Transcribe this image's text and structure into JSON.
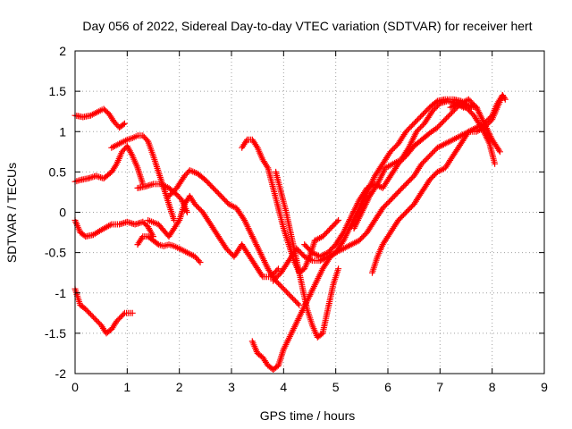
{
  "chart_data": {
    "type": "scatter",
    "title": "Day 056 of 2022, Sidereal Day-to-day VTEC variation (SDTVAR) for receiver hert",
    "xlabel": "GPS time / hours",
    "ylabel": "SDTVAR / TECUs",
    "xlim": [
      0,
      9
    ],
    "ylim": [
      -2,
      2
    ],
    "xticks": [
      "0",
      "1",
      "2",
      "3",
      "4",
      "5",
      "6",
      "7",
      "8",
      "9"
    ],
    "yticks": [
      "2",
      "1.5",
      "1",
      "0.5",
      "0",
      "-0.5",
      "-1",
      "-1.5",
      "-2"
    ],
    "grid": true,
    "marker": "plus",
    "color": "#ff0000",
    "series": [
      {
        "x": [
          0.0,
          0.15,
          0.3,
          0.45,
          0.55,
          0.65,
          0.75,
          0.85,
          0.95
        ],
        "y": [
          1.2,
          1.18,
          1.2,
          1.25,
          1.28,
          1.22,
          1.12,
          1.05,
          1.1
        ]
      },
      {
        "x": [
          0.0,
          0.1,
          0.25,
          0.4,
          0.55,
          0.7,
          0.8,
          0.9,
          1.0,
          1.1,
          1.2,
          1.3
        ],
        "y": [
          0.38,
          0.4,
          0.42,
          0.45,
          0.42,
          0.5,
          0.6,
          0.75,
          0.82,
          0.7,
          0.55,
          0.35
        ]
      },
      {
        "x": [
          0.0,
          0.1,
          0.2,
          0.35,
          0.5,
          0.7,
          0.85,
          1.0,
          1.15,
          1.3,
          1.4,
          1.5
        ],
        "y": [
          -0.1,
          -0.25,
          -0.3,
          -0.28,
          -0.22,
          -0.15,
          -0.15,
          -0.12,
          -0.15,
          -0.12,
          -0.18,
          -0.3
        ]
      },
      {
        "x": [
          0.0,
          0.1,
          0.2,
          0.35,
          0.5,
          0.6,
          0.7,
          0.8,
          0.95,
          1.1
        ],
        "y": [
          -0.95,
          -1.15,
          -1.2,
          -1.3,
          -1.4,
          -1.5,
          -1.45,
          -1.35,
          -1.25,
          -1.25
        ]
      },
      {
        "x": [
          0.7,
          0.85,
          1.0,
          1.1,
          1.2,
          1.3,
          1.4,
          1.5,
          1.6,
          1.7,
          1.8,
          1.9
        ],
        "y": [
          0.8,
          0.85,
          0.9,
          0.92,
          0.95,
          0.95,
          0.88,
          0.7,
          0.5,
          0.3,
          0.1,
          -0.1
        ]
      },
      {
        "x": [
          1.2,
          1.3,
          1.4,
          1.5,
          1.6,
          1.7,
          1.8,
          1.9,
          2.0,
          2.15,
          2.3,
          2.4
        ],
        "y": [
          -0.4,
          -0.3,
          -0.3,
          -0.35,
          -0.4,
          -0.42,
          -0.4,
          -0.42,
          -0.45,
          -0.5,
          -0.55,
          -0.62
        ]
      },
      {
        "x": [
          1.2,
          1.35,
          1.5,
          1.65,
          1.8,
          1.95,
          2.05,
          2.15
        ],
        "y": [
          0.3,
          0.32,
          0.35,
          0.35,
          0.3,
          0.22,
          0.15,
          0.0
        ]
      },
      {
        "x": [
          1.4,
          1.6,
          1.8,
          2.0,
          2.1,
          2.2,
          2.3,
          2.45,
          2.6,
          2.75,
          2.9,
          3.05,
          3.2,
          3.3,
          3.45,
          3.6,
          3.75,
          3.9
        ],
        "y": [
          -0.1,
          -0.15,
          -0.3,
          -0.1,
          0.1,
          0.2,
          0.1,
          0.0,
          -0.15,
          -0.3,
          -0.45,
          -0.55,
          -0.4,
          -0.5,
          -0.65,
          -0.8,
          -0.8,
          -0.7
        ]
      },
      {
        "x": [
          1.8,
          1.95,
          2.1,
          2.2,
          2.35,
          2.5,
          2.65,
          2.8,
          2.95,
          3.1,
          3.25,
          3.4,
          3.55,
          3.7,
          3.85,
          4.0,
          4.15,
          4.3
        ],
        "y": [
          0.2,
          0.3,
          0.45,
          0.52,
          0.48,
          0.4,
          0.3,
          0.2,
          0.1,
          0.05,
          -0.1,
          -0.3,
          -0.5,
          -0.7,
          -0.85,
          -0.95,
          -1.05,
          -1.15
        ]
      },
      {
        "x": [
          3.2,
          3.3,
          3.4,
          3.5,
          3.6,
          3.7,
          3.8,
          3.9,
          4.0,
          4.1,
          4.2,
          4.3,
          4.4,
          4.5,
          4.6
        ],
        "y": [
          0.8,
          0.9,
          0.9,
          0.8,
          0.65,
          0.55,
          0.3,
          0.05,
          -0.2,
          -0.4,
          -0.6,
          -0.75,
          -0.7,
          -0.55,
          -0.35
        ]
      },
      {
        "x": [
          3.85,
          3.95,
          4.05,
          4.15,
          4.25,
          4.35,
          4.45,
          4.55,
          4.65,
          4.75,
          4.85,
          4.95,
          5.05
        ],
        "y": [
          0.5,
          0.25,
          0.0,
          -0.3,
          -0.6,
          -0.9,
          -1.2,
          -1.4,
          -1.55,
          -1.5,
          -1.2,
          -0.9,
          -0.7
        ]
      },
      {
        "x": [
          3.4,
          3.5,
          3.6,
          3.7,
          3.8,
          3.9,
          4.0,
          4.15,
          4.3,
          4.45,
          4.6,
          4.75,
          4.9,
          5.0
        ],
        "y": [
          -1.6,
          -1.75,
          -1.8,
          -1.9,
          -1.95,
          -1.9,
          -1.7,
          -1.5,
          -1.3,
          -1.1,
          -0.9,
          -0.7,
          -0.55,
          -0.5
        ]
      },
      {
        "x": [
          3.8,
          3.95,
          4.1,
          4.25,
          4.4,
          4.55,
          4.7,
          4.85,
          5.0,
          5.15,
          5.3,
          5.45,
          5.6,
          5.75,
          5.9,
          6.05,
          6.2,
          6.35,
          6.5,
          6.65,
          6.8,
          6.95,
          7.1,
          7.25,
          7.4,
          7.55,
          7.7
        ],
        "y": [
          -0.85,
          -0.75,
          -0.6,
          -0.45,
          -0.55,
          -0.6,
          -0.6,
          -0.55,
          -0.5,
          -0.35,
          -0.15,
          0.05,
          0.25,
          0.45,
          0.6,
          0.75,
          0.85,
          1.0,
          1.1,
          1.2,
          1.3,
          1.38,
          1.4,
          1.4,
          1.38,
          1.32,
          1.3
        ]
      },
      {
        "x": [
          4.4,
          4.55,
          4.7,
          4.85,
          5.0,
          5.15,
          5.3,
          5.45,
          5.6,
          5.75,
          5.9,
          6.05,
          6.2,
          6.35,
          6.5,
          6.65,
          6.8,
          6.95,
          7.1,
          7.25,
          7.4,
          7.55,
          7.7,
          7.85,
          8.0,
          8.15
        ],
        "y": [
          -0.4,
          -0.5,
          -0.55,
          -0.5,
          -0.4,
          -0.25,
          -0.05,
          0.15,
          0.3,
          0.35,
          0.3,
          0.45,
          0.6,
          0.7,
          0.82,
          0.9,
          0.98,
          1.05,
          1.15,
          1.25,
          1.35,
          1.4,
          1.3,
          1.1,
          0.9,
          0.75
        ]
      },
      {
        "x": [
          4.7,
          4.85,
          5.0,
          5.15,
          5.3,
          5.45,
          5.6,
          5.75,
          5.9,
          6.05,
          6.2,
          6.35,
          6.5,
          6.65,
          6.8,
          6.95,
          7.1,
          7.25,
          7.4,
          7.55,
          7.7,
          7.85,
          8.0,
          8.1,
          8.2
        ],
        "y": [
          -0.6,
          -0.55,
          -0.5,
          -0.45,
          -0.4,
          -0.35,
          -0.25,
          -0.1,
          0.05,
          0.15,
          0.25,
          0.35,
          0.45,
          0.6,
          0.7,
          0.8,
          0.85,
          0.9,
          0.95,
          1.0,
          1.0,
          1.05,
          1.15,
          1.3,
          1.45
        ]
      },
      {
        "x": [
          4.6,
          4.75,
          4.9,
          5.05
        ],
        "y": [
          -0.35,
          -0.3,
          -0.2,
          -0.1
        ]
      },
      {
        "x": [
          5.7,
          5.8,
          5.9,
          6.0,
          6.1,
          6.2,
          6.35,
          6.5,
          6.65,
          6.8,
          6.95,
          7.1,
          7.25,
          7.4,
          7.55,
          7.7,
          7.85,
          8.0,
          8.1,
          8.2,
          8.25
        ],
        "y": [
          -0.75,
          -0.55,
          -0.4,
          -0.3,
          -0.2,
          -0.1,
          0.0,
          0.1,
          0.25,
          0.4,
          0.5,
          0.55,
          0.7,
          0.85,
          1.0,
          1.05,
          1.1,
          1.2,
          1.35,
          1.45,
          1.4
        ]
      },
      {
        "x": [
          5.35,
          5.5,
          5.65,
          5.8,
          5.95,
          6.1,
          6.25,
          6.4,
          6.55,
          6.7,
          6.85,
          7.0,
          7.15,
          7.3,
          7.45,
          7.6
        ],
        "y": [
          -0.2,
          0.0,
          0.2,
          0.35,
          0.55,
          0.6,
          0.65,
          0.8,
          1.0,
          1.1,
          1.25,
          1.35,
          1.38,
          1.35,
          1.3,
          1.3
        ]
      },
      {
        "x": [
          7.2,
          7.35,
          7.5,
          7.65,
          7.8,
          7.95,
          8.05
        ],
        "y": [
          1.3,
          1.35,
          1.3,
          1.2,
          1.05,
          0.85,
          0.6
        ]
      }
    ]
  }
}
